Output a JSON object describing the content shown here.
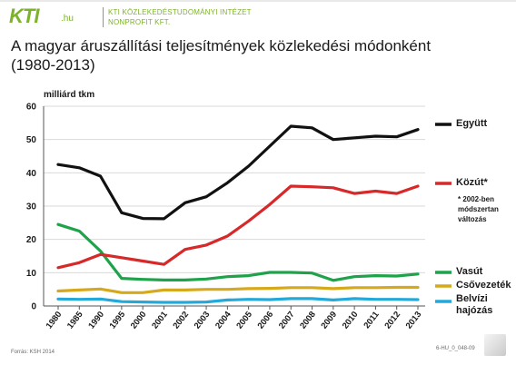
{
  "header": {
    "logo_text": "KTI",
    "logo_domain": ".hu",
    "org_line1": "KTI KÖZLEKEDÉSTUDOMÁNYI INTÉZET",
    "org_line2": "NONPROFIT KFT.",
    "brand_color": "#7cb32b"
  },
  "title_line1": "A magyar áruszállítási teljesítmények közlekedési módonként",
  "title_line2": "(1980-2013)",
  "footer": {
    "source": "Forrás: KSH 2014",
    "code": "6-HU_0_048-09"
  },
  "chart_data": {
    "type": "line",
    "title": "A magyar áruszállítási teljesítmények közlekedési módonként (1980-2013)",
    "ylabel": "milliárd tkm",
    "xlabel": "",
    "ylim": [
      0,
      60
    ],
    "yticks": [
      0,
      10,
      20,
      30,
      40,
      50,
      60
    ],
    "grid": true,
    "legend_position": "right",
    "x": [
      "1980",
      "1985",
      "1990",
      "1995",
      "2000",
      "2001",
      "2002",
      "2003",
      "2004",
      "2005",
      "2006",
      "2007",
      "2008",
      "2009",
      "2010",
      "2011",
      "2012",
      "2013"
    ],
    "series": [
      {
        "name": "Együtt",
        "color": "#111111",
        "values": [
          42.5,
          41.5,
          39.0,
          28.0,
          26.3,
          26.2,
          31.0,
          32.8,
          37.0,
          42.0,
          48.0,
          54.0,
          53.5,
          50.0,
          50.5,
          51.0,
          50.8,
          53.0
        ]
      },
      {
        "name": "Közút*",
        "color": "#d7282a",
        "note": "* 2002-ben módszertan változás",
        "values": [
          11.5,
          13.0,
          15.5,
          14.5,
          13.5,
          12.5,
          17.0,
          18.3,
          21.0,
          25.5,
          30.5,
          36.0,
          35.8,
          35.5,
          33.8,
          34.5,
          33.8,
          36.0
        ]
      },
      {
        "name": "Vasút",
        "color": "#1fa34a",
        "values": [
          24.5,
          22.5,
          16.5,
          8.3,
          8.0,
          7.8,
          7.8,
          8.1,
          8.8,
          9.1,
          10.1,
          10.1,
          9.9,
          7.7,
          8.8,
          9.1,
          9.0,
          9.6
        ]
      },
      {
        "name": "Csővezeték",
        "color": "#d6a91c",
        "values": [
          4.5,
          4.8,
          5.1,
          4.0,
          4.0,
          4.8,
          4.8,
          5.0,
          5.0,
          5.2,
          5.3,
          5.5,
          5.5,
          5.2,
          5.5,
          5.5,
          5.6,
          5.6
        ]
      },
      {
        "name": "Belvízi hajózás",
        "color": "#23a9d9",
        "values": [
          2.1,
          2.0,
          2.1,
          1.3,
          1.2,
          1.1,
          1.1,
          1.2,
          1.8,
          2.0,
          1.9,
          2.2,
          2.2,
          1.8,
          2.2,
          2.0,
          2.0,
          1.9
        ]
      }
    ]
  }
}
